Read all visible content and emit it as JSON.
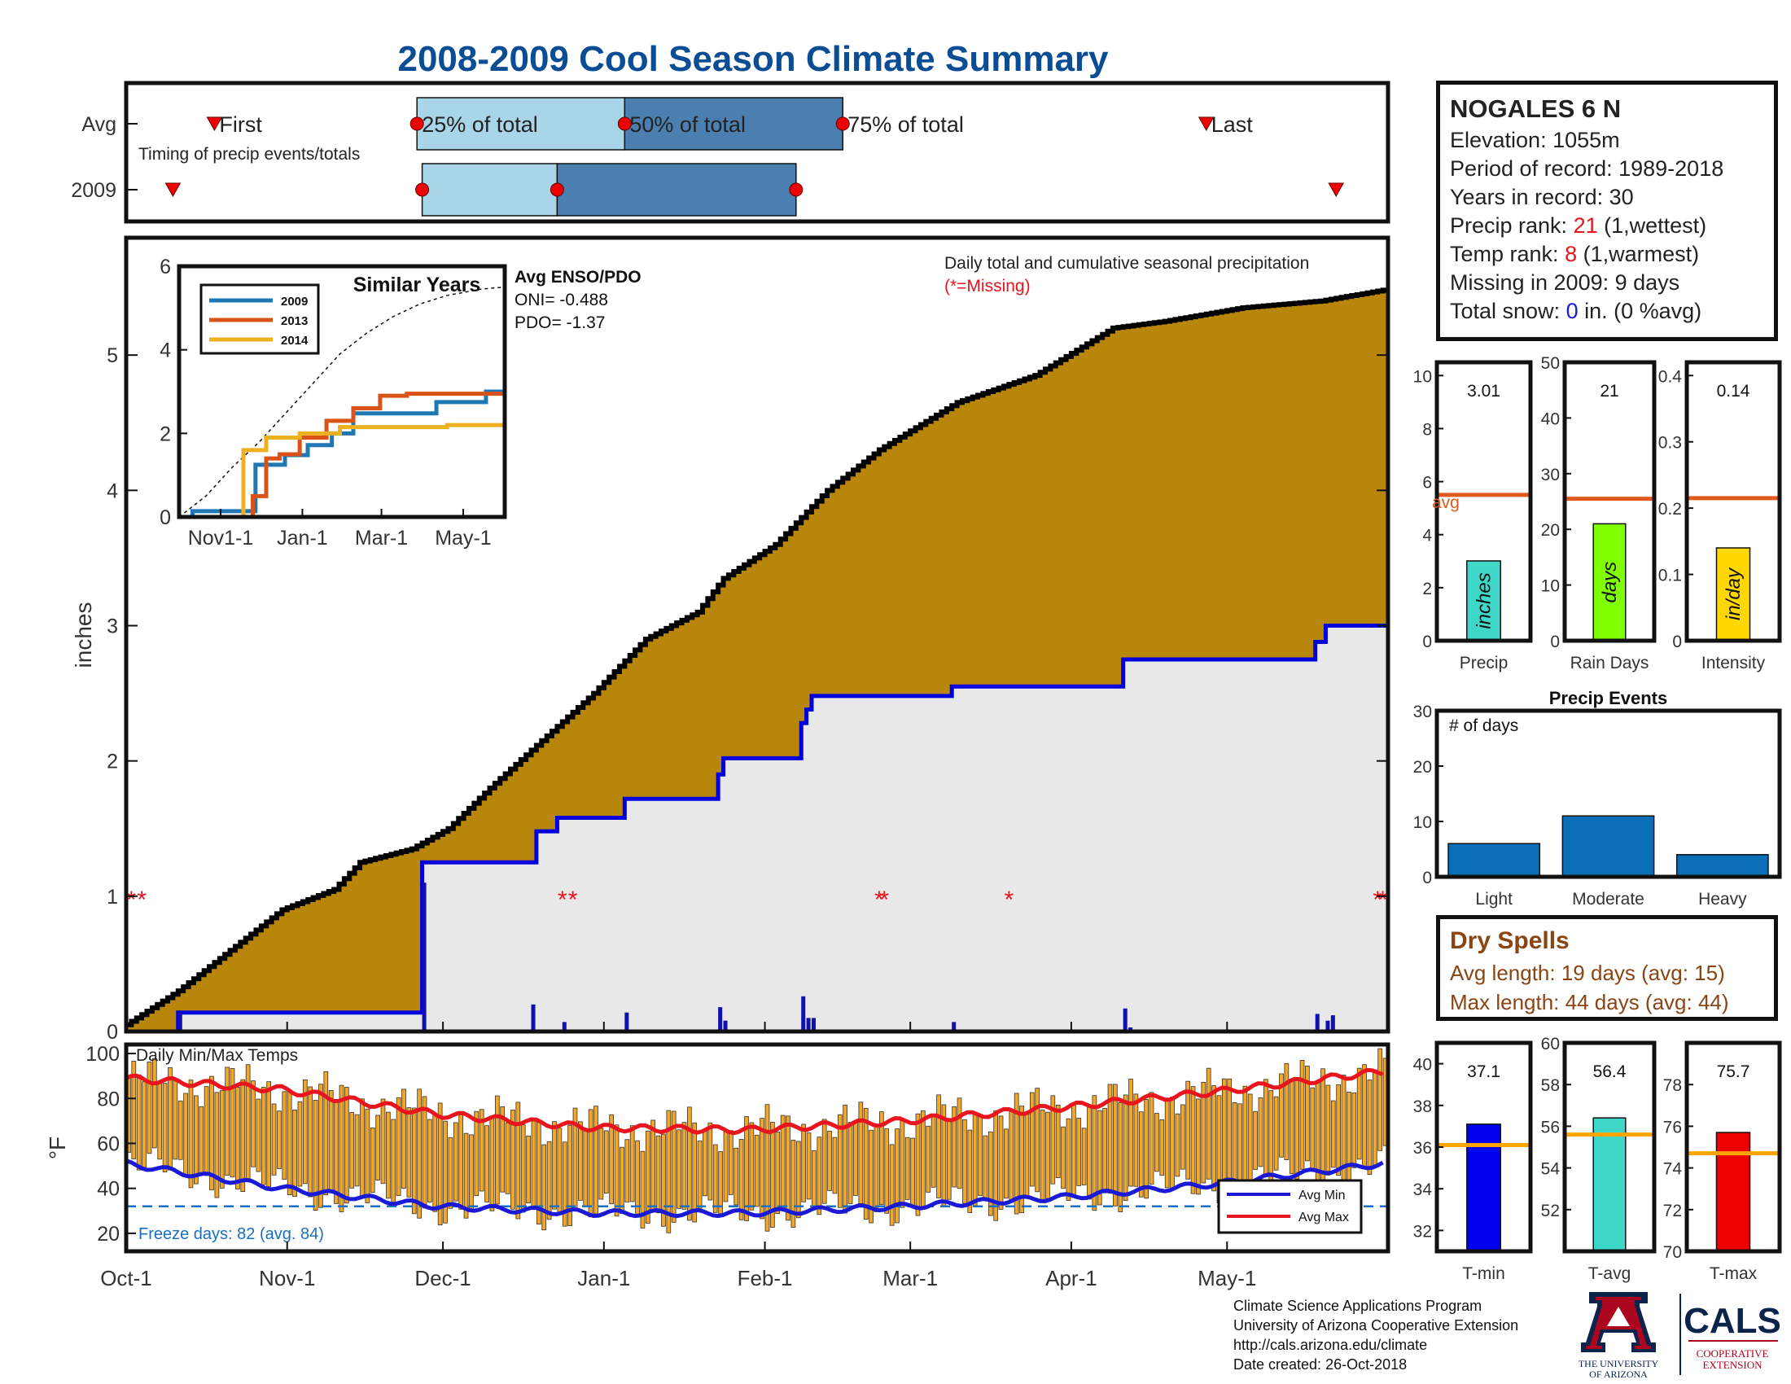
{
  "title": "2008-2009 Cool Season Climate Summary",
  "station": {
    "name": "NOGALES 6 N",
    "elevation": "Elevation: 1055m",
    "period": "Period of record: 1989-2018",
    "years": "Years in record: 30",
    "precip_rank_label": "Precip rank: ",
    "precip_rank_value": "21",
    "precip_rank_note": " (1,wettest)",
    "temp_rank_label": "Temp rank: ",
    "temp_rank_value": "8",
    "temp_rank_note": " (1,warmest)",
    "missing": "Missing in 2009: 9 days",
    "snow_label": "Total snow: ",
    "snow_value": "0",
    "snow_note": " in. (0 %avg)"
  },
  "dry_spells": {
    "title": "Dry Spells",
    "avg": "Avg length: 19 days (avg: 15)",
    "max": "Max length: 44 days (avg: 44)"
  },
  "footer": {
    "line1": "Climate Science Applications Program",
    "line2": "University of Arizona Cooperative Extension",
    "line3": "http://cals.arizona.edu/climate",
    "line4": " Date created: 26-Oct-2018"
  },
  "logos": {
    "ua_line1": "THE UNIVERSITY",
    "ua_line2": "OF ARIZONA",
    "cals": "CALS",
    "cals_line1": "COOPERATIVE",
    "cals_line2": "EXTENSION"
  },
  "colors": {
    "avg_cumulative_fill": "#b8860b",
    "obs_cumulative_fill": "#e8e8e8",
    "obs_line": "#0000dd",
    "avg_line": "#000000",
    "temp_bar": "#f5a623",
    "avg_max": "#e8141e",
    "avg_min": "#1a1ad6",
    "avg_marker": "#e05a1e",
    "timing_light": "#a9d5e8",
    "timing_dark": "#4a7fb0",
    "tmin_bar": "#0000ee",
    "tavg_bar": "#3fd8c8",
    "tmax_bar": "#ee0000",
    "precip_bar": "#3fd8c8",
    "raindays_bar": "#80ff00",
    "intensity_bar": "#ffd700",
    "events_bar": "#0b6eb8",
    "title_color": "#0b4d94"
  },
  "chart_data": [
    {
      "id": "timing",
      "type": "bar",
      "title": "",
      "annotation": "Timing of precip events/totals",
      "rows": [
        "Avg",
        "2009"
      ],
      "x_units": "days since Oct-1",
      "xlim": [
        0,
        243
      ],
      "avg": {
        "first": 17,
        "p25": 56,
        "p50": 96,
        "p75": 138,
        "last": 208
      },
      "y2009": {
        "first": 9,
        "p25": 57,
        "p50": 83,
        "p75": 129,
        "last": 233
      },
      "labels": {
        "first": "First",
        "p25": "25% of total",
        "p50": "50% of total",
        "p75": "75% of total",
        "last": "Last"
      }
    },
    {
      "id": "cumulative",
      "type": "area",
      "title": "Daily total and cumulative seasonal precipitation",
      "subtitle": "(*=Missing)",
      "xlabel": "",
      "ylabel": "inches",
      "ylim": [
        0,
        6
      ],
      "yticks": [
        0,
        1,
        2,
        3,
        4,
        5
      ],
      "xticks": [
        {
          "d": 0,
          "label": "Oct-1"
        },
        {
          "d": 31,
          "label": "Nov-1"
        },
        {
          "d": 61,
          "label": "Dec-1"
        },
        {
          "d": 92,
          "label": "Jan-1"
        },
        {
          "d": 123,
          "label": "Feb-1"
        },
        {
          "d": 151,
          "label": "Mar-1"
        },
        {
          "d": 182,
          "label": "Apr-1"
        },
        {
          "d": 212,
          "label": "May-1"
        }
      ],
      "avg_cumulative": [
        [
          0,
          0.05
        ],
        [
          10,
          0.3
        ],
        [
          20,
          0.6
        ],
        [
          30,
          0.9
        ],
        [
          40,
          1.05
        ],
        [
          45,
          1.25
        ],
        [
          55,
          1.35
        ],
        [
          62,
          1.5
        ],
        [
          70,
          1.8
        ],
        [
          80,
          2.15
        ],
        [
          90,
          2.5
        ],
        [
          100,
          2.9
        ],
        [
          110,
          3.1
        ],
        [
          115,
          3.35
        ],
        [
          125,
          3.6
        ],
        [
          135,
          4.0
        ],
        [
          145,
          4.3
        ],
        [
          160,
          4.65
        ],
        [
          175,
          4.85
        ],
        [
          190,
          5.2
        ],
        [
          200,
          5.25
        ],
        [
          215,
          5.35
        ],
        [
          230,
          5.4
        ],
        [
          242,
          5.48
        ]
      ],
      "obs_cumulative": [
        [
          0,
          0
        ],
        [
          9,
          0
        ],
        [
          10,
          0.14
        ],
        [
          56,
          0.14
        ],
        [
          57,
          1.25
        ],
        [
          78,
          1.25
        ],
        [
          79,
          1.48
        ],
        [
          83,
          1.58
        ],
        [
          95,
          1.58
        ],
        [
          96,
          1.72
        ],
        [
          113,
          1.72
        ],
        [
          114,
          1.9
        ],
        [
          115,
          2.02
        ],
        [
          129,
          2.02
        ],
        [
          130,
          2.28
        ],
        [
          131,
          2.38
        ],
        [
          132,
          2.48
        ],
        [
          158,
          2.48
        ],
        [
          159,
          2.55
        ],
        [
          191,
          2.55
        ],
        [
          192,
          2.75
        ],
        [
          228,
          2.75
        ],
        [
          229,
          2.88
        ],
        [
          231,
          3.0
        ],
        [
          242,
          3.0
        ]
      ],
      "daily": [
        [
          10,
          0.14
        ],
        [
          57,
          1.1
        ],
        [
          78,
          0.2
        ],
        [
          84,
          0.07
        ],
        [
          96,
          0.14
        ],
        [
          114,
          0.18
        ],
        [
          115,
          0.08
        ],
        [
          130,
          0.26
        ],
        [
          131,
          0.1
        ],
        [
          132,
          0.1
        ],
        [
          159,
          0.07
        ],
        [
          192,
          0.17
        ],
        [
          193,
          0.03
        ],
        [
          229,
          0.13
        ],
        [
          231,
          0.08
        ],
        [
          232,
          0.12
        ]
      ],
      "missing": [
        1,
        3,
        84,
        86,
        145,
        146,
        170,
        241,
        242
      ]
    },
    {
      "id": "similar_years",
      "type": "line",
      "title": "Similar Years",
      "ylim": [
        0,
        6
      ],
      "yticks": [
        0,
        2,
        4,
        6
      ],
      "xticks": [
        {
          "d": 31,
          "label": "Nov1-1"
        },
        {
          "d": 92,
          "label": "Jan-1"
        },
        {
          "d": 151,
          "label": "Mar-1"
        },
        {
          "d": 212,
          "label": "May-1"
        }
      ],
      "enso": {
        "title": "Avg ENSO/PDO",
        "oni": "ONI= -0.488",
        "pdo": "PDO= -1.37"
      },
      "series": [
        {
          "name": "2009",
          "color": "#1f77b4",
          "points": [
            [
              0,
              0
            ],
            [
              10,
              0.14
            ],
            [
              56,
              0.14
            ],
            [
              57,
              1.25
            ],
            [
              78,
              1.25
            ],
            [
              79,
              1.48
            ],
            [
              96,
              1.72
            ],
            [
              114,
              2.0
            ],
            [
              130,
              2.48
            ],
            [
              192,
              2.75
            ],
            [
              229,
              3.0
            ],
            [
              242,
              3.0
            ]
          ]
        },
        {
          "name": "2013",
          "color": "#d95319",
          "points": [
            [
              0,
              0
            ],
            [
              50,
              0
            ],
            [
              55,
              0.5
            ],
            [
              62,
              0.5
            ],
            [
              65,
              1.4
            ],
            [
              75,
              1.5
            ],
            [
              90,
              1.9
            ],
            [
              110,
              2.3
            ],
            [
              130,
              2.6
            ],
            [
              150,
              2.9
            ],
            [
              170,
              2.95
            ],
            [
              242,
              2.95
            ]
          ]
        },
        {
          "name": "2014",
          "color": "#edb120",
          "points": [
            [
              0,
              0
            ],
            [
              45,
              0
            ],
            [
              48,
              1.6
            ],
            [
              60,
              1.6
            ],
            [
              65,
              1.9
            ],
            [
              90,
              2.0
            ],
            [
              120,
              2.15
            ],
            [
              160,
              2.15
            ],
            [
              200,
              2.2
            ],
            [
              242,
              2.2
            ]
          ]
        }
      ],
      "avg_dashed": [
        [
          0,
          0
        ],
        [
          20,
          0.5
        ],
        [
          40,
          1.2
        ],
        [
          60,
          1.8
        ],
        [
          80,
          2.5
        ],
        [
          100,
          3.2
        ],
        [
          120,
          3.9
        ],
        [
          140,
          4.4
        ],
        [
          160,
          4.8
        ],
        [
          180,
          5.1
        ],
        [
          200,
          5.3
        ],
        [
          225,
          5.45
        ],
        [
          242,
          5.5
        ]
      ]
    },
    {
      "id": "temps",
      "type": "bar",
      "title": "Daily Min/Max Temps",
      "ylabel": "°F",
      "ylim": [
        12,
        104
      ],
      "yticks": [
        20,
        40,
        60,
        80,
        100
      ],
      "freeze_line": 32,
      "freeze_text": "Freeze days: 82 (avg. 84)",
      "legend": [
        "Avg Min",
        "Avg Max"
      ],
      "avg_max": [
        [
          0,
          89
        ],
        [
          30,
          84
        ],
        [
          60,
          73
        ],
        [
          90,
          67
        ],
        [
          120,
          66
        ],
        [
          150,
          70
        ],
        [
          180,
          76
        ],
        [
          210,
          83
        ],
        [
          242,
          92
        ]
      ],
      "avg_min": [
        [
          0,
          51
        ],
        [
          30,
          40
        ],
        [
          60,
          32
        ],
        [
          90,
          29
        ],
        [
          120,
          29
        ],
        [
          150,
          32
        ],
        [
          180,
          36
        ],
        [
          210,
          42
        ],
        [
          242,
          51
        ]
      ]
    },
    {
      "id": "precip_small",
      "type": "bar",
      "categories": [
        "Precip"
      ],
      "values": [
        3.01
      ],
      "label": "3.01",
      "unit": "inches",
      "ylim": [
        0,
        10.5
      ],
      "yticks": [
        0,
        2,
        4,
        6,
        8,
        10
      ],
      "avg": 5.5,
      "avg_label": "avg"
    },
    {
      "id": "raindays_small",
      "type": "bar",
      "categories": [
        "Rain Days"
      ],
      "values": [
        21
      ],
      "label": "21",
      "unit": "days",
      "ylim": [
        0,
        50
      ],
      "yticks": [
        0,
        10,
        20,
        30,
        40,
        50
      ],
      "avg": 25.5
    },
    {
      "id": "intensity_small",
      "type": "bar",
      "categories": [
        "Intensity"
      ],
      "values": [
        0.14
      ],
      "label": "0.14",
      "unit": "in/day",
      "ylim": [
        0,
        0.42
      ],
      "yticks": [
        0,
        0.1,
        0.2,
        0.3,
        0.4
      ],
      "avg": 0.215
    },
    {
      "id": "events",
      "type": "bar",
      "title": "Precip Events",
      "annotation": "# of days",
      "categories": [
        "Light",
        "Moderate",
        "Heavy"
      ],
      "values": [
        6,
        11,
        4
      ],
      "ylim": [
        0,
        30
      ],
      "yticks": [
        0,
        10,
        20,
        30
      ]
    },
    {
      "id": "tmin_small",
      "type": "bar",
      "categories": [
        "T-min"
      ],
      "values": [
        37.1
      ],
      "label": "37.1",
      "ylim": [
        31,
        41
      ],
      "yticks": [
        32,
        34,
        36,
        38,
        40
      ],
      "avg": 36.1
    },
    {
      "id": "tavg_small",
      "type": "bar",
      "categories": [
        "T-avg"
      ],
      "values": [
        56.4
      ],
      "label": "56.4",
      "ylim": [
        50,
        60
      ],
      "yticks": [
        52,
        54,
        56,
        58,
        60
      ],
      "avg": 55.6
    },
    {
      "id": "tmax_small",
      "type": "bar",
      "categories": [
        "T-max"
      ],
      "values": [
        75.7
      ],
      "label": "75.7",
      "ylim": [
        70,
        80
      ],
      "yticks": [
        70,
        72,
        74,
        76,
        78
      ],
      "avg": 74.7
    }
  ]
}
